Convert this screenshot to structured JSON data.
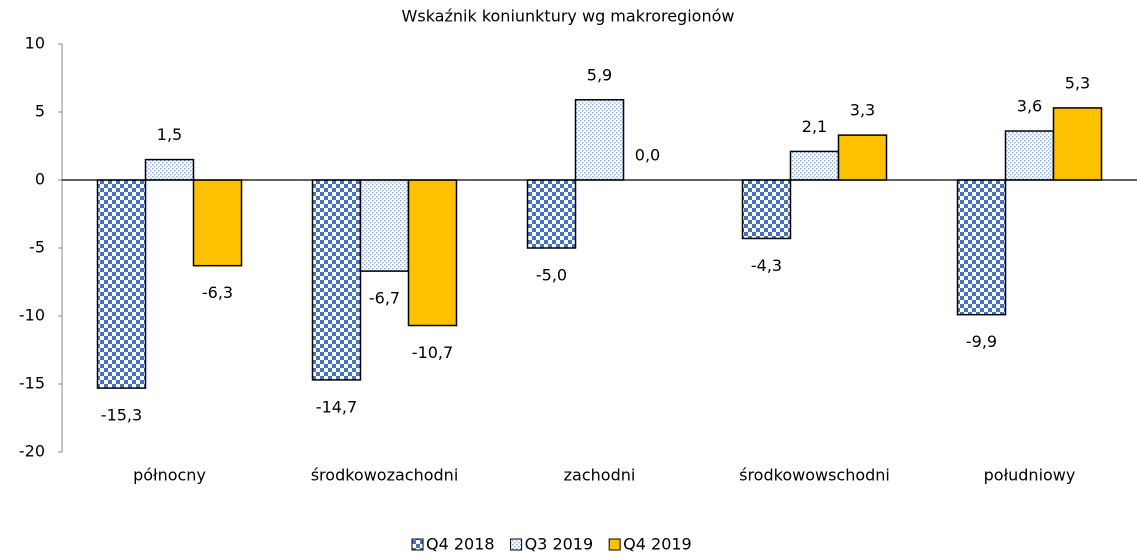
{
  "chart_data": {
    "type": "bar",
    "title": "Wskaźnik koniunktury wg makroregionów",
    "categories": [
      "północny",
      "środkowozachodni",
      "zachodni",
      "środkowowschodni",
      "południowy"
    ],
    "series": [
      {
        "name": "Q4 2018",
        "color": "#4472c4",
        "pattern": "checker",
        "values": [
          -15.3,
          -14.7,
          -5.0,
          -4.3,
          -9.9
        ],
        "value_labels": [
          "-15,3",
          "-14,7",
          "-5,0",
          "-4,3",
          "-9,9"
        ]
      },
      {
        "name": "Q3 2019",
        "color": "#8fb4e3",
        "pattern": "dots",
        "values": [
          1.5,
          -6.7,
          5.9,
          2.1,
          3.6
        ],
        "value_labels": [
          "1,5",
          "-6,7",
          "5,9",
          "2,1",
          "3,6"
        ]
      },
      {
        "name": "Q4 2019",
        "color": "#ffc000",
        "pattern": "solid",
        "values": [
          -6.3,
          -10.7,
          0.0,
          3.3,
          5.3
        ],
        "value_labels": [
          "-6,3",
          "-10,7",
          "0,0",
          "3,3",
          "5,3"
        ]
      }
    ],
    "ylim": [
      -20,
      10
    ],
    "yticks": [
      -20,
      -15,
      -10,
      -5,
      0,
      5,
      10
    ],
    "grid": false,
    "legend": "bottom"
  }
}
